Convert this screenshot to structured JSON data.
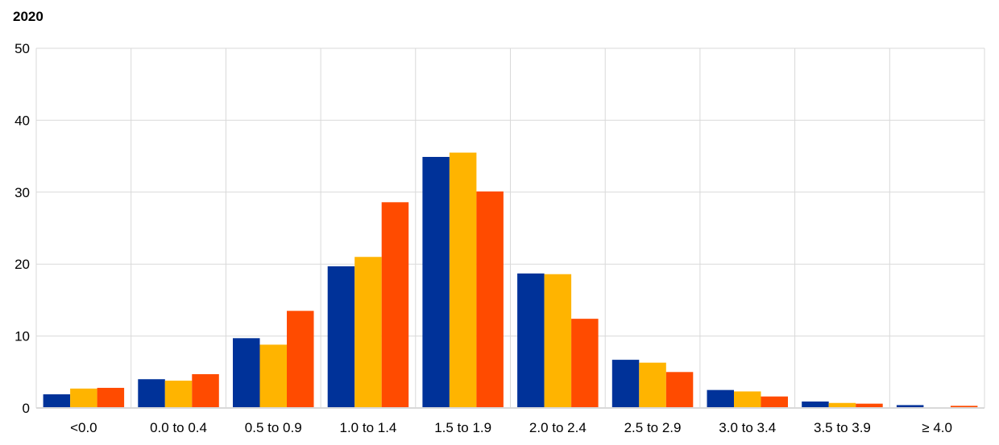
{
  "chart_data": {
    "type": "bar",
    "title": "2020",
    "xlabel": "",
    "ylabel": "",
    "ylim": [
      0,
      50
    ],
    "yticks": [
      0,
      10,
      20,
      30,
      40,
      50
    ],
    "grid": true,
    "categories": [
      "<0.0",
      "0.0 to 0.4",
      "0.5 to 0.9",
      "1.0 to 1.4",
      "1.5 to 1.9",
      "2.0 to 2.4",
      "2.5 to 2.9",
      "3.0 to 3.4",
      "3.5 to 3.9",
      "≥ 4.0"
    ],
    "series": [
      {
        "color": "#003299",
        "values": [
          1.9,
          4.0,
          9.7,
          19.7,
          34.9,
          18.7,
          6.7,
          2.5,
          0.9,
          0.4
        ]
      },
      {
        "color": "#FFB400",
        "values": [
          2.7,
          3.8,
          8.8,
          21.0,
          35.5,
          18.6,
          6.3,
          2.3,
          0.7,
          0.1
        ]
      },
      {
        "color": "#FF4B00",
        "values": [
          2.8,
          4.7,
          13.5,
          28.6,
          30.1,
          12.4,
          5.0,
          1.6,
          0.6,
          0.3
        ]
      }
    ]
  }
}
